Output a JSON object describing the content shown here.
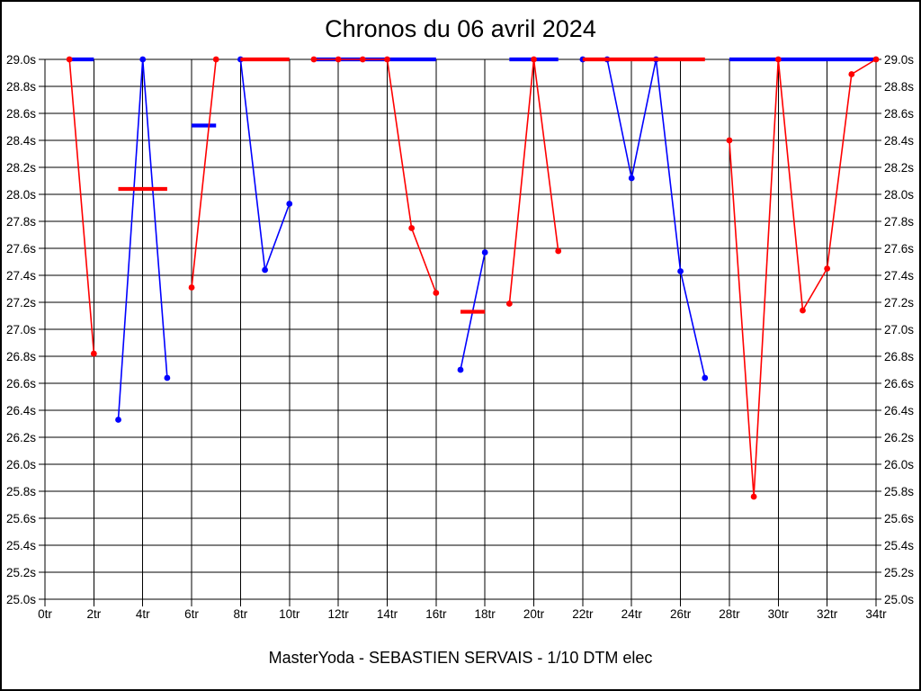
{
  "chart_data": {
    "type": "line",
    "title": "Chronos du 06 avril 2024",
    "subtitle": "MasterYoda - SEBASTIEN SERVAIS - 1/10 DTM elec",
    "xlabel": "",
    "ylabel": "",
    "x_unit": "tr",
    "y_unit": "s",
    "xlim": [
      0,
      34
    ],
    "ylim": [
      25.0,
      29.0
    ],
    "x_tick_step": 2,
    "y_tick_step": 0.2,
    "grid": true,
    "legend_position": "none",
    "x_tick_labels": [
      "0tr",
      "2tr",
      "4tr",
      "6tr",
      "8tr",
      "10tr",
      "12tr",
      "14tr",
      "16tr",
      "18tr",
      "20tr",
      "22tr",
      "24tr",
      "26tr",
      "28tr",
      "30tr",
      "32tr",
      "34tr"
    ],
    "y_tick_labels": [
      "29.0s",
      "28.8s",
      "28.6s",
      "28.4s",
      "28.2s",
      "28.0s",
      "27.8s",
      "27.6s",
      "27.4s",
      "27.2s",
      "27.0s",
      "26.8s",
      "26.6s",
      "26.4s",
      "26.2s",
      "26.0s",
      "25.8s",
      "25.6s",
      "25.4s",
      "25.2s",
      "25.0s"
    ],
    "series": [
      {
        "name": "blue",
        "color": "#0000ff",
        "segments": [
          [
            [
              3,
              26.33
            ],
            [
              4,
              29.0
            ],
            [
              5,
              26.64
            ]
          ],
          [
            [
              8,
              29.0
            ],
            [
              9,
              27.44
            ],
            [
              10,
              27.93
            ]
          ],
          [
            [
              17,
              26.7
            ],
            [
              18,
              27.57
            ]
          ],
          [
            [
              22,
              29.0
            ],
            [
              23,
              29.0
            ],
            [
              24,
              28.12
            ],
            [
              25,
              29.0
            ],
            [
              26,
              27.43
            ],
            [
              27,
              26.64
            ]
          ]
        ],
        "bars": [
          {
            "from": 1,
            "to": 2,
            "value": 29.0
          },
          {
            "from": 6,
            "to": 7,
            "value": 28.51
          },
          {
            "from": 11,
            "to": 16,
            "value": 29.0
          },
          {
            "from": 19,
            "to": 21,
            "value": 29.0
          },
          {
            "from": 28,
            "to": 34,
            "value": 29.0
          }
        ]
      },
      {
        "name": "red",
        "color": "#ff0000",
        "segments": [
          [
            [
              1,
              29.0
            ],
            [
              2,
              26.82
            ]
          ],
          [
            [
              6,
              27.31
            ],
            [
              7,
              29.0
            ]
          ],
          [
            [
              11,
              29.0
            ],
            [
              12,
              29.0
            ],
            [
              13,
              29.0
            ],
            [
              14,
              29.0
            ],
            [
              15,
              27.75
            ],
            [
              16,
              27.27
            ]
          ],
          [
            [
              19,
              27.19
            ],
            [
              20,
              29.0
            ],
            [
              21,
              27.58
            ]
          ],
          [
            [
              28,
              28.4
            ],
            [
              29,
              25.76
            ],
            [
              30,
              29.0
            ],
            [
              31,
              27.14
            ],
            [
              32,
              27.45
            ],
            [
              33,
              28.89
            ],
            [
              34,
              29.0
            ]
          ]
        ],
        "bars": [
          {
            "from": 3,
            "to": 5,
            "value": 28.04
          },
          {
            "from": 8,
            "to": 10,
            "value": 29.0
          },
          {
            "from": 17,
            "to": 18,
            "value": 27.13
          },
          {
            "from": 22,
            "to": 27,
            "value": 29.0
          }
        ]
      }
    ]
  }
}
